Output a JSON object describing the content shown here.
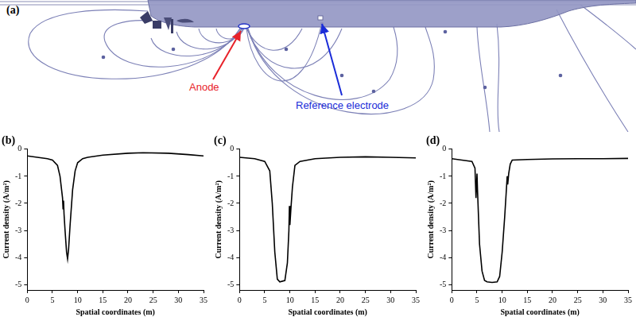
{
  "diagram": {
    "label": "(a)",
    "annotations": [
      {
        "text": "Anode"
      },
      {
        "text": "Reference electrode"
      }
    ]
  },
  "chart_data": [
    {
      "type": "line",
      "title": "(b)",
      "x_label": "Spatial coordinates (m)",
      "y_label": "Current density (A/m²)",
      "x": [
        0,
        2,
        4,
        5,
        6,
        6.5,
        7,
        7.1,
        7.2,
        7.3,
        7.5,
        7.8,
        8,
        8.2,
        8.5,
        9,
        9.5,
        10,
        11,
        12,
        15,
        20,
        23,
        28,
        32,
        35
      ],
      "values": [
        -0.25,
        -0.3,
        -0.35,
        -0.4,
        -0.6,
        -1.0,
        -1.8,
        -2.2,
        -1.9,
        -2.4,
        -3.0,
        -3.8,
        -4.05,
        -3.7,
        -2.8,
        -1.5,
        -0.8,
        -0.5,
        -0.35,
        -0.3,
        -0.22,
        -0.15,
        -0.13,
        -0.15,
        -0.2,
        -0.25
      ],
      "color": "#000000",
      "xlim": [
        0,
        35
      ],
      "xticks": [
        0,
        5,
        10,
        15,
        20,
        25,
        30,
        35
      ],
      "ylim": [
        -5.2,
        0
      ],
      "yticks": [
        -5,
        -4,
        -3,
        -2,
        -1,
        0
      ],
      "grid": false
    },
    {
      "type": "line",
      "title": "(c)",
      "x_label": "Spatial coordinates (m)",
      "y_label": "Current density (A/m²)",
      "x": [
        0,
        3,
        5,
        6,
        6.5,
        7,
        7.5,
        8,
        9,
        9.5,
        9.8,
        9.9,
        10,
        10.2,
        10.5,
        11,
        12,
        15,
        20,
        25,
        30,
        35
      ],
      "values": [
        -0.3,
        -0.35,
        -0.45,
        -0.8,
        -2.0,
        -3.8,
        -4.8,
        -4.9,
        -4.85,
        -4.2,
        -3.0,
        -2.1,
        -2.8,
        -2.2,
        -1.4,
        -0.6,
        -0.45,
        -0.35,
        -0.3,
        -0.28,
        -0.3,
        -0.32
      ],
      "color": "#000000",
      "xlim": [
        0,
        35
      ],
      "xticks": [
        0,
        5,
        10,
        15,
        20,
        25,
        30,
        35
      ],
      "ylim": [
        -5.2,
        0
      ],
      "yticks": [
        -5,
        -4,
        -3,
        -2,
        -1,
        0
      ],
      "grid": false
    },
    {
      "type": "line",
      "title": "(d)",
      "x_label": "Spatial coordinates (m)",
      "y_label": "Current density (A/m²)",
      "x": [
        0,
        2,
        4,
        4.6,
        4.8,
        5,
        5.1,
        5.3,
        5.5,
        6,
        6.5,
        7,
        8,
        9,
        9.5,
        10,
        10.5,
        10.8,
        11,
        11.1,
        11.3,
        11.6,
        12,
        15,
        20,
        25,
        30,
        35
      ],
      "values": [
        -0.35,
        -0.4,
        -0.45,
        -0.7,
        -1.8,
        -0.9,
        -1.5,
        -2.5,
        -3.5,
        -4.5,
        -4.85,
        -4.9,
        -4.92,
        -4.9,
        -4.7,
        -3.8,
        -2.5,
        -1.6,
        -1.0,
        -1.3,
        -0.9,
        -0.55,
        -0.4,
        -0.38,
        -0.36,
        -0.35,
        -0.35,
        -0.34
      ],
      "color": "#000000",
      "xlim": [
        0,
        35
      ],
      "xticks": [
        0,
        5,
        10,
        15,
        20,
        25,
        30,
        35
      ],
      "ylim": [
        -5.2,
        0
      ],
      "yticks": [
        -5,
        -4,
        -3,
        -2,
        -1,
        0
      ],
      "grid": false
    }
  ]
}
